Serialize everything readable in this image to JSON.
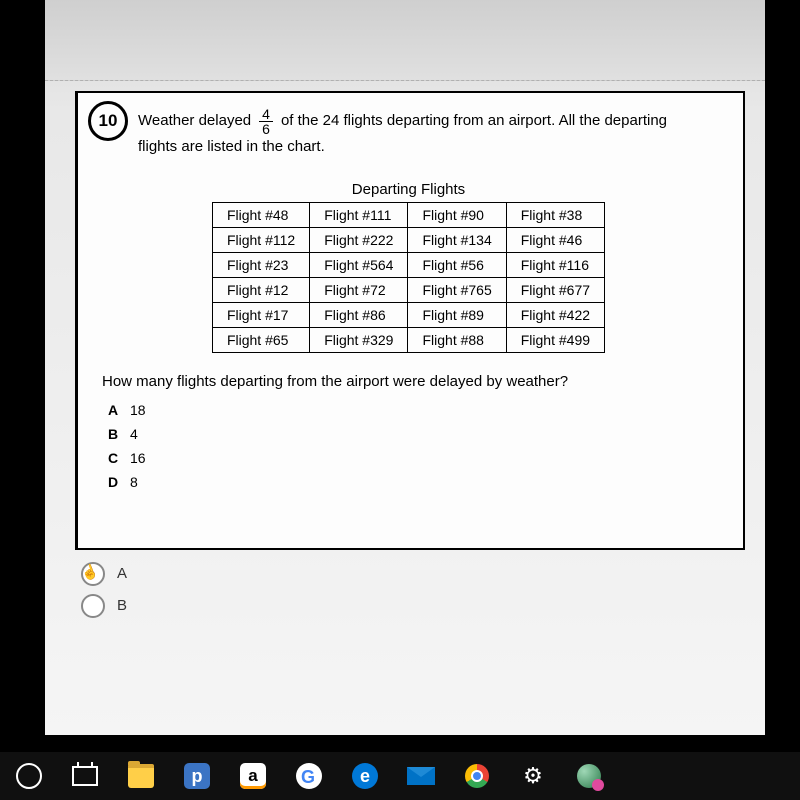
{
  "question": {
    "number": "10",
    "text_before_fraction": "Weather delayed",
    "fraction": {
      "numerator": "4",
      "denominator": "6"
    },
    "text_after_fraction": "of the 24 flights departing from an airport. All the departing",
    "text_line2": "flights are listed in the chart.",
    "table_title": "Departing Flights",
    "table": {
      "columns": 4,
      "rows": [
        [
          "Flight #48",
          "Flight #111",
          "Flight #90",
          "Flight #38"
        ],
        [
          "Flight #112",
          "Flight #222",
          "Flight #134",
          "Flight #46"
        ],
        [
          "Flight #23",
          "Flight #564",
          "Flight #56",
          "Flight #116"
        ],
        [
          "Flight #12",
          "Flight #72",
          "Flight #765",
          "Flight #677"
        ],
        [
          "Flight #17",
          "Flight #86",
          "Flight #89",
          "Flight #422"
        ],
        [
          "Flight #65",
          "Flight #329",
          "Flight #88",
          "Flight #499"
        ]
      ],
      "border_color": "#000000",
      "cell_padding": "4px 14px",
      "font_size": 14
    },
    "prompt": "How many flights departing from the airport were delayed by weather?",
    "choices": [
      {
        "label": "A",
        "value": "18"
      },
      {
        "label": "B",
        "value": "4"
      },
      {
        "label": "C",
        "value": "16"
      },
      {
        "label": "D",
        "value": "8"
      }
    ]
  },
  "answer_options": [
    {
      "label": "A"
    },
    {
      "label": "B"
    }
  ],
  "colors": {
    "page_bg": "#000000",
    "window_bg": "#f5f5f5",
    "card_bg": "#fdfdfd",
    "border": "#000000"
  },
  "taskbar": {
    "background": "#101010",
    "icons": [
      "cortana-circle-icon",
      "task-view-icon",
      "file-explorer-icon",
      "pandora-icon",
      "amazon-icon",
      "google-icon",
      "edge-icon",
      "mail-icon",
      "chrome-icon",
      "settings-gear-icon",
      "globe-app-icon"
    ]
  }
}
